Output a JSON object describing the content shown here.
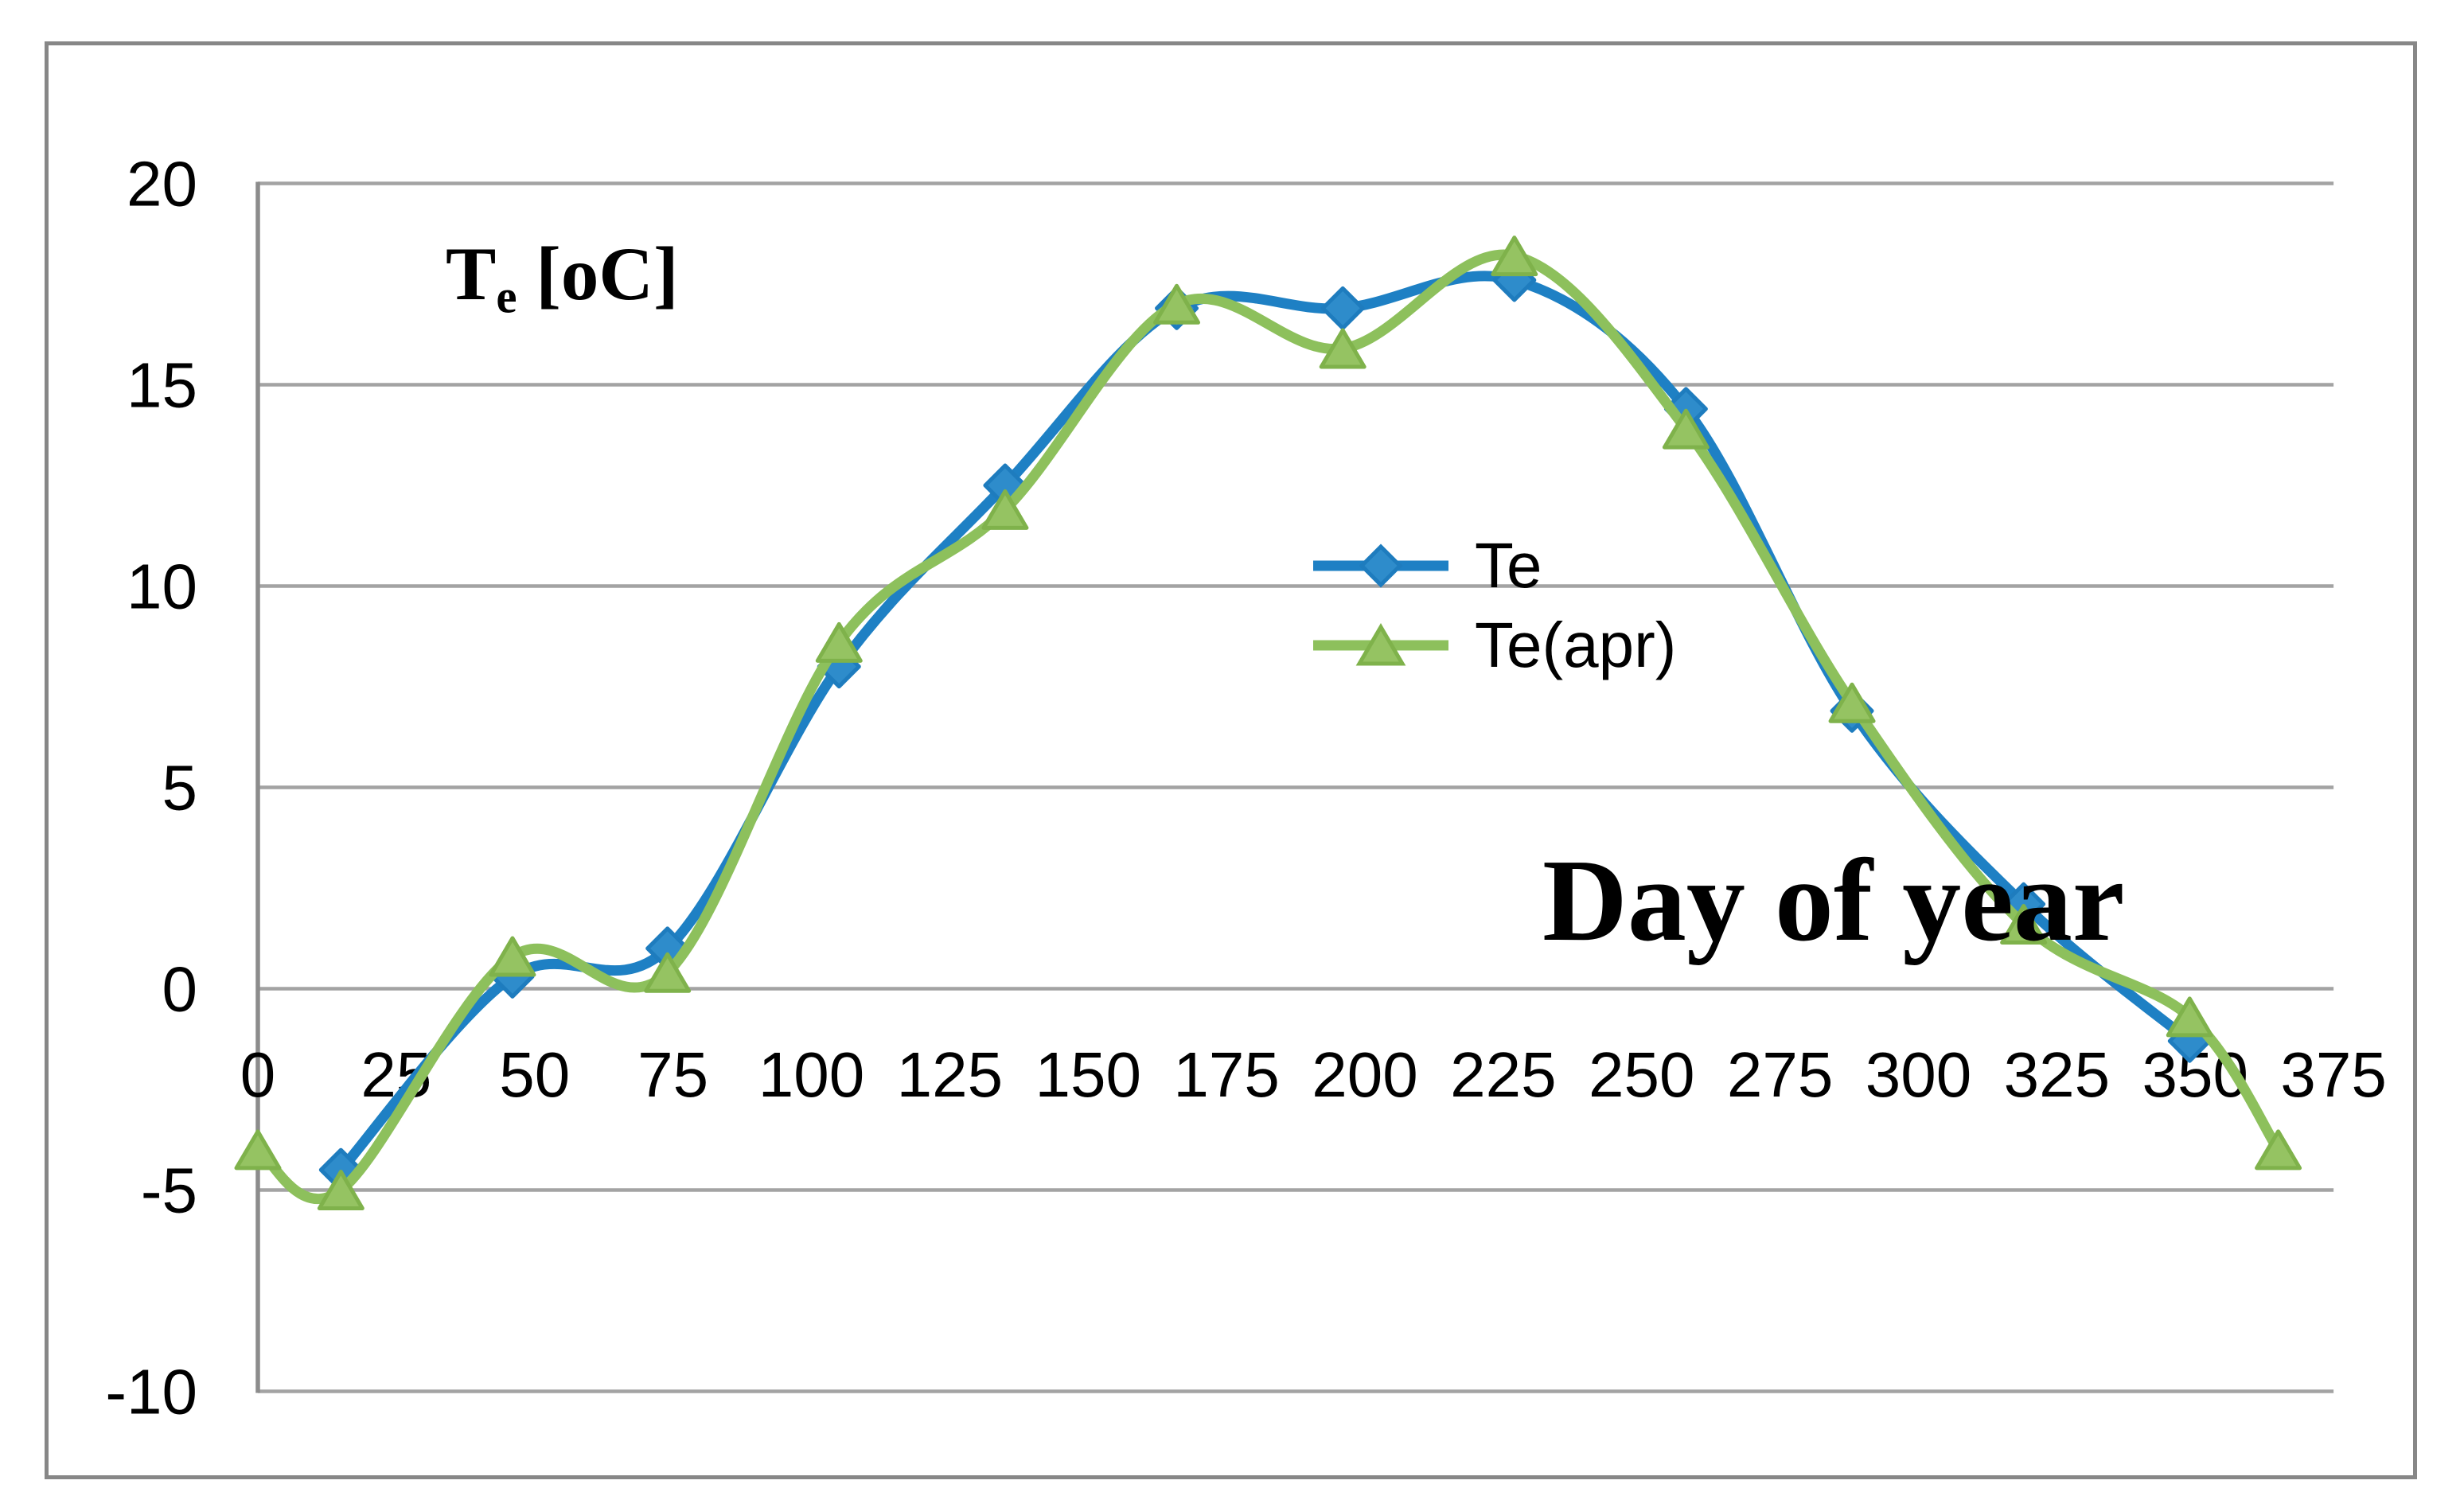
{
  "figure": {
    "y_axis_title": {
      "prefix": "T",
      "subscript": "e",
      "suffix": " [oC]"
    },
    "x_axis_title": "Day of year"
  },
  "legend": {
    "position": "center-right",
    "items": [
      {
        "label": "Te"
      },
      {
        "label": "Te(apr)"
      }
    ]
  },
  "colors": {
    "series1_line": "#1E80C4",
    "series1_fill": "#2E8CCB",
    "series1_edge": "#1E7CBE",
    "series2_line": "#8DC05C",
    "series2_fill": "#95C362",
    "series2_edge": "#7FB24B",
    "gridline": "#A3A3A3",
    "axis": "#8C8C8C",
    "border": "#878787",
    "text": "#000000"
  },
  "chart_data": {
    "type": "line",
    "title": "Te [oC]",
    "xlabel": "Day of year",
    "ylabel": "Te [oC]",
    "xlim": [
      0,
      375
    ],
    "ylim": [
      -10,
      20
    ],
    "x_ticks": [
      0,
      25,
      50,
      75,
      100,
      125,
      150,
      175,
      200,
      225,
      250,
      275,
      300,
      325,
      350,
      375
    ],
    "y_ticks": [
      -10,
      -5,
      0,
      5,
      10,
      15,
      20
    ],
    "grid": "horizontal-only",
    "legend_position": "center-right",
    "smooth_lines": true,
    "series": [
      {
        "name": "Te",
        "marker": "diamond",
        "color": "#1E80C4",
        "x": [
          15,
          46,
          74,
          105,
          135,
          166,
          196,
          227,
          258,
          288,
          319,
          349
        ],
        "y": [
          -4.5,
          0.3,
          1.0,
          8.0,
          12.5,
          16.9,
          16.9,
          17.6,
          14.4,
          6.9,
          2.1,
          -1.3
        ]
      },
      {
        "name": "Te(apr)",
        "marker": "triangle",
        "color": "#8DC05C",
        "x": [
          0,
          15,
          46,
          74,
          105,
          135,
          166,
          196,
          227,
          258,
          288,
          319,
          349,
          365
        ],
        "y": [
          -4.0,
          -5.0,
          0.8,
          0.4,
          8.6,
          11.9,
          17.0,
          15.9,
          18.2,
          13.9,
          7.1,
          1.6,
          -0.7,
          -4.0
        ]
      }
    ]
  }
}
